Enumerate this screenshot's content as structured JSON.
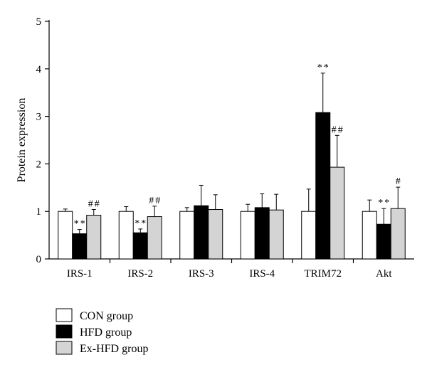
{
  "chart_data": {
    "type": "bar",
    "ylabel": "Protein expression",
    "xlabel": "",
    "ylim": [
      0,
      5
    ],
    "yticks": [
      0,
      1,
      2,
      3,
      4,
      5
    ],
    "categories": [
      "IRS-1",
      "IRS-2",
      "IRS-3",
      "IRS-4",
      "TRIM72",
      "Akt"
    ],
    "series": [
      {
        "name": "CON group",
        "color": "#ffffff",
        "values": [
          1.0,
          1.0,
          1.0,
          1.0,
          1.0,
          1.0
        ],
        "errors": [
          0.05,
          0.1,
          0.08,
          0.15,
          0.47,
          0.24
        ],
        "annotations": [
          "",
          "",
          "",
          "",
          "",
          ""
        ]
      },
      {
        "name": "HFD group",
        "color": "#000000",
        "values": [
          0.53,
          0.55,
          1.12,
          1.08,
          3.08,
          0.73
        ],
        "errors": [
          0.09,
          0.08,
          0.43,
          0.29,
          0.83,
          0.33
        ],
        "annotations": [
          "**",
          "**",
          "",
          "",
          "**",
          "**"
        ]
      },
      {
        "name": "Ex-HFD group",
        "color": "#d4d4d4",
        "values": [
          0.92,
          0.89,
          1.04,
          1.03,
          1.93,
          1.06
        ],
        "errors": [
          0.12,
          0.22,
          0.31,
          0.33,
          0.67,
          0.45
        ],
        "annotations": [
          "##",
          "##",
          "",
          "",
          "##",
          "#"
        ]
      }
    ],
    "legend_position": "bottom-left",
    "grid": false
  }
}
